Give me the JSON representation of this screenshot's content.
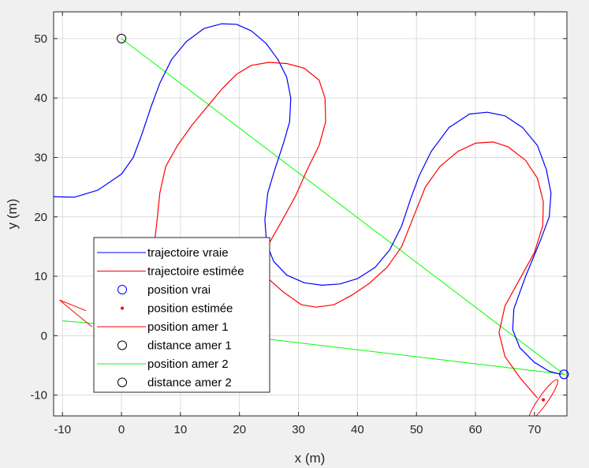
{
  "chart_data": {
    "type": "line",
    "title": "",
    "xlabel": "x (m)",
    "ylabel": "y (m)",
    "xlim": [
      -11.5,
      75.5
    ],
    "ylim": [
      -13.5,
      54.5
    ],
    "xticks": [
      -10,
      0,
      10,
      20,
      30,
      40,
      50,
      60,
      70
    ],
    "yticks": [
      -10,
      0,
      10,
      20,
      30,
      40,
      50
    ],
    "grid": true,
    "legend_position": "lower-left",
    "legend": [
      {
        "label": "trajectoire vraie",
        "style": "line",
        "color": "#0000ff"
      },
      {
        "label": "trajectoire estimée",
        "style": "line",
        "color": "#ff0000"
      },
      {
        "label": "position vrai",
        "style": "circle",
        "color": "#0000ff"
      },
      {
        "label": "position estimée",
        "style": "dot",
        "color": "#ff0000"
      },
      {
        "label": "position amer 1",
        "style": "line",
        "color": "#ff0000"
      },
      {
        "label": "distance amer 1",
        "style": "circle",
        "color": "#000000"
      },
      {
        "label": "position amer 2",
        "style": "line",
        "color": "#00ff00"
      },
      {
        "label": "distance amer 2",
        "style": "circle",
        "color": "#000000"
      }
    ],
    "series": [
      {
        "name": "trajectoire vraie",
        "color": "#0000ff",
        "points": [
          [
            -12,
            23.4
          ],
          [
            -8,
            23.3
          ],
          [
            -4,
            24.5
          ],
          [
            0,
            27.2
          ],
          [
            2,
            30
          ],
          [
            3.5,
            34
          ],
          [
            5,
            38.5
          ],
          [
            6.5,
            42.5
          ],
          [
            8.5,
            46.5
          ],
          [
            11,
            49.5
          ],
          [
            14,
            51.7
          ],
          [
            17,
            52.5
          ],
          [
            19.5,
            52.4
          ],
          [
            22,
            51.3
          ],
          [
            24.5,
            49.2
          ],
          [
            26.5,
            46.5
          ],
          [
            28,
            43.5
          ],
          [
            28.7,
            40
          ],
          [
            28.5,
            36
          ],
          [
            27.5,
            32.5
          ],
          [
            26,
            28
          ],
          [
            24.8,
            24
          ],
          [
            24.3,
            19.5
          ],
          [
            24.6,
            15.5
          ],
          [
            25.8,
            12.5
          ],
          [
            28,
            10.2
          ],
          [
            31,
            8.9
          ],
          [
            34,
            8.5
          ],
          [
            37,
            8.7
          ],
          [
            40,
            9.6
          ],
          [
            43,
            11.5
          ],
          [
            45.5,
            14.5
          ],
          [
            47.5,
            18.5
          ],
          [
            49,
            23
          ],
          [
            50.5,
            27
          ],
          [
            52.5,
            31
          ],
          [
            55.5,
            35
          ],
          [
            59,
            37.3
          ],
          [
            62,
            37.6
          ],
          [
            65,
            37
          ],
          [
            68,
            35
          ],
          [
            70.5,
            32
          ],
          [
            72,
            28
          ],
          [
            72.8,
            24
          ],
          [
            72.5,
            20
          ],
          [
            71,
            16
          ],
          [
            68.5,
            10
          ],
          [
            66.5,
            4.5
          ],
          [
            66.3,
            1
          ],
          [
            67.5,
            -2
          ],
          [
            70,
            -4.5
          ],
          [
            72.5,
            -6
          ],
          [
            74.5,
            -6.5
          ]
        ]
      },
      {
        "name": "trajectoire estimée",
        "color": "#ff0000",
        "points": [
          [
            5,
            11
          ],
          [
            5.5,
            15
          ],
          [
            6,
            19
          ],
          [
            6.5,
            24
          ],
          [
            7.5,
            28.5
          ],
          [
            9.5,
            32
          ],
          [
            12,
            35.5
          ],
          [
            14.5,
            38.5
          ],
          [
            17,
            41.5
          ],
          [
            19.5,
            44
          ],
          [
            22,
            45.5
          ],
          [
            25,
            46
          ],
          [
            28,
            45.8
          ],
          [
            31,
            45
          ],
          [
            33.5,
            43
          ],
          [
            34.5,
            40
          ],
          [
            34.6,
            36
          ],
          [
            33.5,
            32
          ],
          [
            31.5,
            28
          ],
          [
            29.5,
            23.5
          ],
          [
            27,
            19
          ],
          [
            25,
            15.5
          ],
          [
            24,
            12
          ],
          [
            25,
            9.5
          ],
          [
            27.5,
            7.3
          ],
          [
            30.5,
            5.2
          ],
          [
            33,
            4.8
          ],
          [
            36,
            5.2
          ],
          [
            39,
            6.8
          ],
          [
            42,
            8.8
          ],
          [
            45,
            11.5
          ],
          [
            47.5,
            15
          ],
          [
            49.5,
            20
          ],
          [
            51.5,
            25
          ],
          [
            54,
            28.5
          ],
          [
            57,
            31
          ],
          [
            60,
            32.4
          ],
          [
            63,
            32.6
          ],
          [
            65.5,
            31.8
          ],
          [
            68.5,
            29.5
          ],
          [
            70.5,
            26.5
          ],
          [
            71.5,
            22.5
          ],
          [
            71.4,
            18.5
          ],
          [
            70,
            14
          ],
          [
            67.5,
            9.5
          ],
          [
            65,
            5
          ],
          [
            64,
            0.5
          ],
          [
            65,
            -3.5
          ],
          [
            67.5,
            -7
          ],
          [
            70.5,
            -10.5
          ]
        ]
      }
    ],
    "uncertainty_ellipse": {
      "center": [
        71.5,
        -10.8
      ],
      "rx": 1.3,
      "ry": 1.4,
      "rotation_deg": -55,
      "color": "#ff0000"
    },
    "position_vrai": {
      "x": 75,
      "y": -6.5,
      "color": "#0000ff"
    },
    "position_estimee": {
      "x": 71.5,
      "y": -10.8,
      "color": "#ff0000"
    },
    "position_amer_1": {
      "points": [
        [
          -10.5,
          6
        ],
        [
          -6,
          4.2
        ],
        [
          -10.5,
          6
        ],
        [
          -5,
          1.5
        ]
      ],
      "color": "#ff0000"
    },
    "position_amer_2": {
      "points": [
        [
          0,
          50
        ],
        [
          75,
          -6.5
        ],
        [
          20,
          0
        ],
        [
          -10,
          2.5
        ]
      ],
      "color": "#00ff00"
    },
    "distance_amer_1": {
      "x": 0,
      "y": 50,
      "color": "#000000"
    },
    "distance_amer_2": {
      "x": -10,
      "y": 2.5,
      "color": "#000000"
    }
  }
}
